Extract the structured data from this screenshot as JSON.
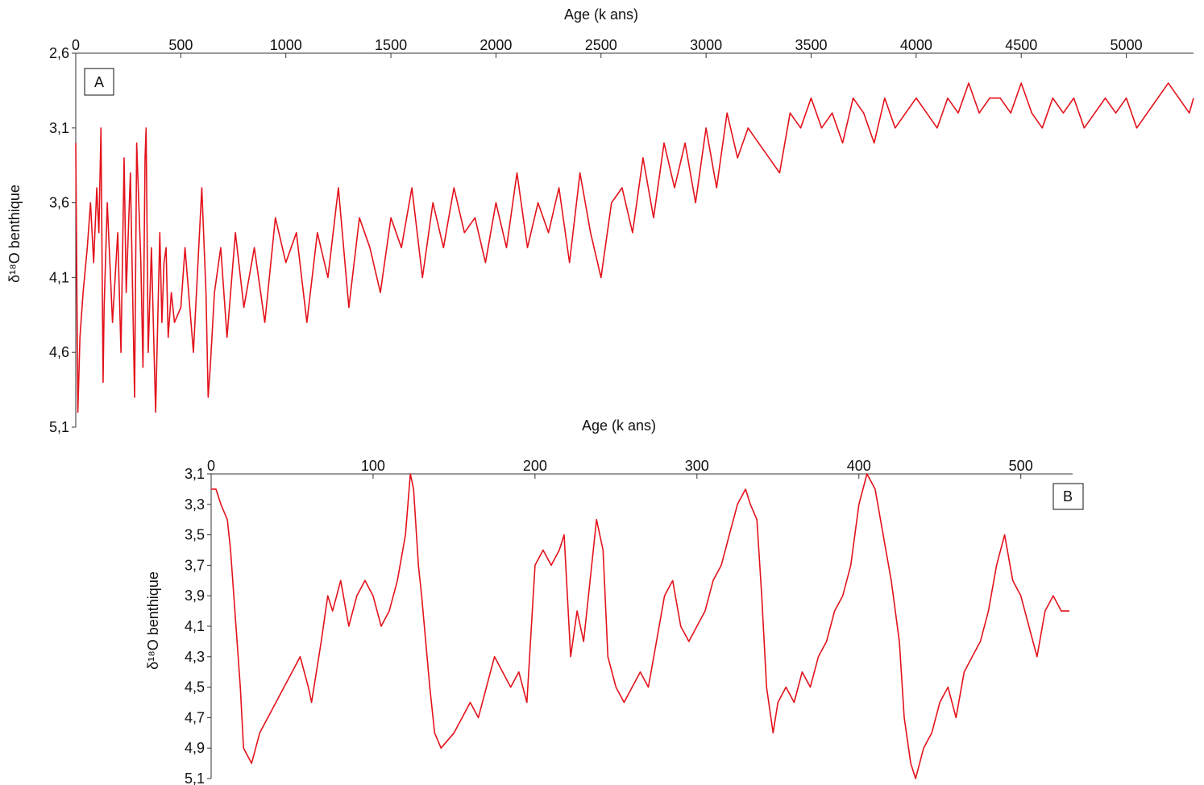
{
  "colors": {
    "series": "#e3121b",
    "axis": "#333333",
    "text": "#111111"
  },
  "chart_data": [
    {
      "panel": "A",
      "type": "line",
      "xlabel": "Age (k ans)",
      "ylabel": "δ¹⁸O benthique",
      "x_axis_position": "top",
      "y_inverted": true,
      "xlim": [
        0,
        5320
      ],
      "ylim": [
        2.6,
        5.1
      ],
      "xticks": [
        "0",
        "500",
        "1000",
        "1500",
        "2000",
        "2500",
        "3000",
        "3500",
        "4000",
        "4500",
        "5000"
      ],
      "yticks": [
        "2,6",
        "3,1",
        "3,6",
        "4,1",
        "4,6",
        "5,1"
      ],
      "grid": false,
      "legend": "none",
      "series": [
        {
          "x": [
            0,
            10,
            20,
            35,
            55,
            70,
            85,
            100,
            110,
            120,
            130,
            135,
            150,
            175,
            200,
            215,
            230,
            240,
            260,
            280,
            290,
            310,
            320,
            330,
            335,
            345,
            360,
            380,
            400,
            410,
            420,
            430,
            440,
            455,
            470,
            500,
            520,
            560,
            600,
            620,
            630,
            640,
            660,
            690,
            720,
            760,
            800,
            850,
            900,
            950,
            1000,
            1050,
            1100,
            1150,
            1200,
            1250,
            1300,
            1350,
            1400,
            1450,
            1500,
            1550,
            1600,
            1650,
            1700,
            1750,
            1800,
            1850,
            1900,
            1950,
            2000,
            2050,
            2100,
            2150,
            2200,
            2250,
            2300,
            2350,
            2400,
            2450,
            2500,
            2550,
            2600,
            2650,
            2700,
            2750,
            2800,
            2850,
            2900,
            2950,
            3000,
            3050,
            3100,
            3150,
            3200,
            3250,
            3300,
            3350,
            3400,
            3450,
            3500,
            3550,
            3600,
            3650,
            3700,
            3750,
            3800,
            3850,
            3900,
            3950,
            4000,
            4050,
            4100,
            4150,
            4200,
            4250,
            4300,
            4350,
            4400,
            4450,
            4500,
            4550,
            4600,
            4650,
            4700,
            4750,
            4800,
            4850,
            4900,
            4950,
            5000,
            5050,
            5100,
            5150,
            5200,
            5250,
            5300,
            5320
          ],
          "y": [
            3.2,
            5.0,
            4.5,
            4.2,
            3.9,
            3.6,
            4.0,
            3.5,
            3.8,
            3.1,
            4.8,
            4.3,
            3.6,
            4.4,
            3.8,
            4.6,
            3.3,
            4.2,
            3.4,
            4.9,
            3.2,
            4.0,
            4.7,
            3.3,
            3.1,
            4.6,
            3.9,
            5.0,
            3.8,
            4.4,
            4.0,
            3.9,
            4.5,
            4.2,
            4.4,
            4.3,
            3.9,
            4.6,
            3.5,
            4.2,
            4.9,
            4.7,
            4.2,
            3.9,
            4.5,
            3.8,
            4.3,
            3.9,
            4.4,
            3.7,
            4.0,
            3.8,
            4.4,
            3.8,
            4.1,
            3.5,
            4.3,
            3.7,
            3.9,
            4.2,
            3.7,
            3.9,
            3.5,
            4.1,
            3.6,
            3.9,
            3.5,
            3.8,
            3.7,
            4.0,
            3.6,
            3.9,
            3.4,
            3.9,
            3.6,
            3.8,
            3.5,
            4.0,
            3.4,
            3.8,
            4.1,
            3.6,
            3.5,
            3.8,
            3.3,
            3.7,
            3.2,
            3.5,
            3.2,
            3.6,
            3.1,
            3.5,
            3.0,
            3.3,
            3.1,
            3.2,
            3.3,
            3.4,
            3.0,
            3.1,
            2.9,
            3.1,
            3.0,
            3.2,
            2.9,
            3.0,
            3.2,
            2.9,
            3.1,
            3.0,
            2.9,
            3.0,
            3.1,
            2.9,
            3.0,
            2.8,
            3.0,
            2.9,
            2.9,
            3.0,
            2.8,
            3.0,
            3.1,
            2.9,
            3.0,
            2.9,
            3.1,
            3.0,
            2.9,
            3.0,
            2.9,
            3.1,
            3.0,
            2.9,
            2.8,
            2.9,
            3.0,
            2.9
          ]
        }
      ],
      "annotations": [
        "A"
      ]
    },
    {
      "panel": "B",
      "type": "line",
      "xlabel": "Age (k ans)",
      "ylabel": "δ¹⁸O benthique",
      "x_axis_position": "top",
      "y_inverted": true,
      "xlim": [
        0,
        532
      ],
      "ylim": [
        3.1,
        5.1
      ],
      "xticks": [
        "0",
        "100",
        "200",
        "300",
        "400",
        "500"
      ],
      "yticks": [
        "3,1",
        "3,3",
        "3,5",
        "3,7",
        "3,9",
        "4,1",
        "4,3",
        "4,5",
        "4,7",
        "4,9",
        "5,1"
      ],
      "grid": false,
      "legend": "none",
      "series": [
        {
          "x": [
            0,
            3,
            6,
            10,
            12,
            18,
            20,
            25,
            30,
            40,
            45,
            50,
            55,
            60,
            62,
            68,
            72,
            75,
            80,
            85,
            90,
            95,
            100,
            105,
            110,
            115,
            120,
            123,
            125,
            128,
            130,
            135,
            138,
            142,
            150,
            155,
            160,
            165,
            170,
            175,
            180,
            185,
            190,
            195,
            200,
            205,
            210,
            215,
            218,
            222,
            226,
            230,
            235,
            238,
            242,
            245,
            250,
            255,
            260,
            265,
            270,
            275,
            280,
            285,
            290,
            295,
            300,
            305,
            310,
            315,
            320,
            325,
            330,
            333,
            337,
            340,
            343,
            347,
            350,
            355,
            360,
            365,
            370,
            375,
            380,
            385,
            390,
            395,
            400,
            405,
            410,
            415,
            420,
            425,
            428,
            432,
            435,
            440,
            445,
            450,
            455,
            460,
            465,
            470,
            475,
            480,
            485,
            490,
            495,
            500,
            505,
            510,
            515,
            520,
            525,
            530
          ],
          "y": [
            3.2,
            3.2,
            3.3,
            3.4,
            3.6,
            4.5,
            4.9,
            5.0,
            4.8,
            4.6,
            4.5,
            4.4,
            4.3,
            4.5,
            4.6,
            4.2,
            3.9,
            4.0,
            3.8,
            4.1,
            3.9,
            3.8,
            3.9,
            4.1,
            4.0,
            3.8,
            3.5,
            3.1,
            3.2,
            3.7,
            3.9,
            4.5,
            4.8,
            4.9,
            4.8,
            4.7,
            4.6,
            4.7,
            4.5,
            4.3,
            4.4,
            4.5,
            4.4,
            4.6,
            3.7,
            3.6,
            3.7,
            3.6,
            3.5,
            4.3,
            4.0,
            4.2,
            3.7,
            3.4,
            3.6,
            4.3,
            4.5,
            4.6,
            4.5,
            4.4,
            4.5,
            4.2,
            3.9,
            3.8,
            4.1,
            4.2,
            4.1,
            4.0,
            3.8,
            3.7,
            3.5,
            3.3,
            3.2,
            3.3,
            3.4,
            3.9,
            4.5,
            4.8,
            4.6,
            4.5,
            4.6,
            4.4,
            4.5,
            4.3,
            4.2,
            4.0,
            3.9,
            3.7,
            3.3,
            3.1,
            3.2,
            3.5,
            3.8,
            4.2,
            4.7,
            5.0,
            5.1,
            4.9,
            4.8,
            4.6,
            4.5,
            4.7,
            4.4,
            4.3,
            4.2,
            4.0,
            3.7,
            3.5,
            3.8,
            3.9,
            4.1,
            4.3,
            4.0,
            3.9,
            4.0,
            4.0
          ]
        }
      ],
      "annotations": [
        "B"
      ]
    }
  ]
}
